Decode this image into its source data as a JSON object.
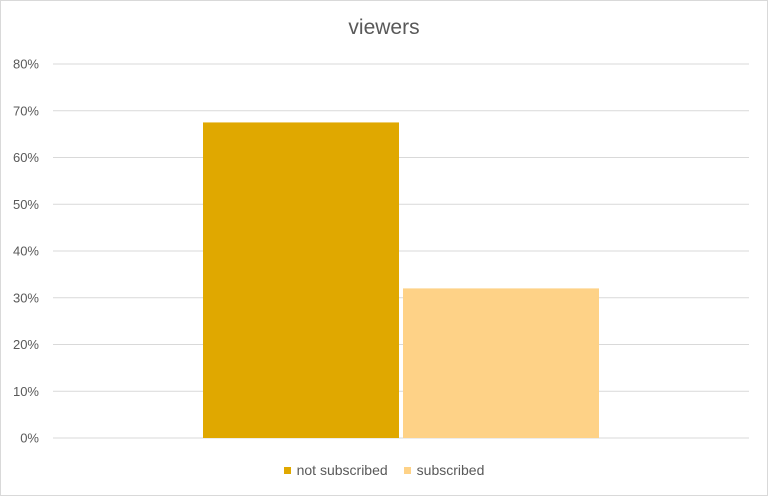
{
  "chart_data": {
    "type": "bar",
    "title": "viewers",
    "categories": [
      "not subscribed",
      "subscribed"
    ],
    "values": [
      0.675,
      0.32
    ],
    "ylim": [
      0,
      0.8
    ],
    "yticks": [
      "0%",
      "10%",
      "20%",
      "30%",
      "40%",
      "50%",
      "60%",
      "70%",
      "80%"
    ],
    "grid": true,
    "legend_position": "bottom",
    "colors": [
      "#e0a800",
      "#fed287"
    ]
  }
}
